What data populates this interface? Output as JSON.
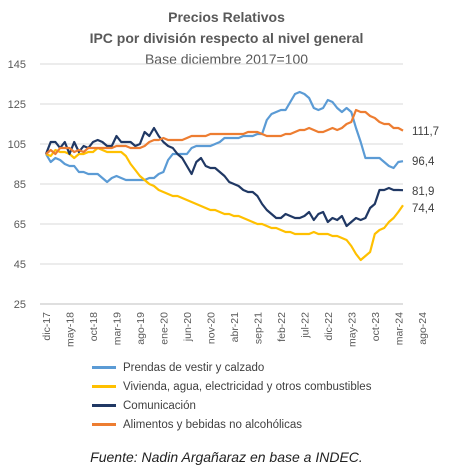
{
  "titles": {
    "line1": "Precios Relativos",
    "line2": "IPC por división respecto al nivel general",
    "line3": "Base diciembre 2017=100"
  },
  "source": "Fuente: Nadin Argañaraz en base a INDEC.",
  "chart_data": {
    "type": "line",
    "ylim": [
      25,
      145
    ],
    "yticks": [
      25,
      45,
      65,
      85,
      105,
      125,
      145
    ],
    "xticks": [
      "dic-17",
      "may-18",
      "oct-18",
      "mar-19",
      "ago-19",
      "ene-20",
      "jun-20",
      "nov-20",
      "abr-21",
      "sep-21",
      "feb-22",
      "jul-22",
      "dic-22",
      "may-23",
      "oct-23",
      "mar-24",
      "ago-24"
    ],
    "grid": true,
    "legend_position": "bottom",
    "series": [
      {
        "name": "Prendas de vestir y calzado",
        "color": "#5b9bd5",
        "end_label": "96,4",
        "values": [
          100,
          96,
          98,
          97,
          95,
          94,
          94,
          91,
          91,
          90,
          90,
          90,
          88,
          86,
          88,
          89,
          88,
          87,
          87,
          87,
          87,
          87,
          88,
          88,
          90,
          91,
          97,
          100,
          100,
          100,
          100,
          103,
          104,
          104,
          104,
          104,
          105,
          106,
          108,
          108,
          108,
          108,
          109,
          109,
          109,
          110,
          110,
          117,
          120,
          121,
          122,
          122,
          126,
          130,
          131,
          130,
          128,
          123,
          122,
          123,
          127,
          126,
          123,
          121,
          123,
          121,
          113,
          106,
          98,
          98,
          98,
          98,
          96,
          94,
          93,
          96,
          96.4
        ]
      },
      {
        "name": "Vivienda, agua, electricidad y otros combustibles",
        "color": "#ffc000",
        "end_label": "74,4",
        "values": [
          100,
          99,
          102,
          101,
          101,
          100,
          98,
          100,
          100,
          101,
          101,
          103,
          102,
          101,
          101,
          101,
          101,
          99,
          95,
          92,
          89,
          87,
          85,
          84,
          82,
          81,
          80,
          79,
          79,
          78,
          77,
          76,
          75,
          74,
          73,
          72,
          72,
          71,
          70,
          70,
          69,
          69,
          68,
          67,
          66,
          65,
          65,
          64,
          63,
          63,
          62,
          61,
          61,
          60,
          60,
          60,
          60,
          61,
          60,
          60,
          60,
          59,
          59,
          58,
          57,
          54,
          50,
          47,
          49,
          51,
          60,
          62,
          63,
          66,
          68,
          71,
          74.4
        ]
      },
      {
        "name": "Comunicación",
        "color": "#203864",
        "end_label": "81,9",
        "values": [
          100,
          106,
          106,
          103,
          106,
          100,
          106,
          101,
          104,
          103,
          106,
          107,
          106,
          104,
          104,
          109,
          106,
          106,
          106,
          104,
          105,
          111,
          109,
          113,
          109,
          106,
          104,
          103,
          100,
          98,
          94,
          90,
          96,
          98,
          94,
          93,
          93,
          91,
          89,
          86,
          85,
          84,
          82,
          81,
          81,
          79,
          75,
          72,
          70,
          68,
          68,
          70,
          69,
          68,
          68,
          69,
          71,
          67,
          70,
          71,
          66,
          68,
          67,
          69,
          64,
          66,
          68,
          67,
          68,
          73,
          75,
          82,
          82,
          83,
          82,
          82,
          81.9
        ]
      },
      {
        "name": "Alimentos y bebidas no alcohólicas",
        "color": "#ed7d31",
        "end_label": "111,7",
        "values": [
          100,
          102,
          100,
          103,
          103,
          103,
          101,
          102,
          101,
          103,
          103,
          103,
          103,
          103,
          103,
          104,
          104,
          104,
          103,
          103,
          103,
          104,
          106,
          107,
          107,
          108,
          107,
          107,
          107,
          107,
          108,
          109,
          109,
          109,
          109,
          110,
          110,
          110,
          110,
          110,
          110,
          110,
          110,
          111,
          111,
          111,
          110,
          109,
          109,
          109,
          109,
          110,
          110,
          111,
          112,
          112,
          113,
          112,
          111,
          111,
          112,
          113,
          112,
          113,
          115,
          116,
          122,
          121,
          121,
          119,
          118,
          116,
          115,
          115,
          113,
          113,
          111.7
        ]
      }
    ]
  }
}
